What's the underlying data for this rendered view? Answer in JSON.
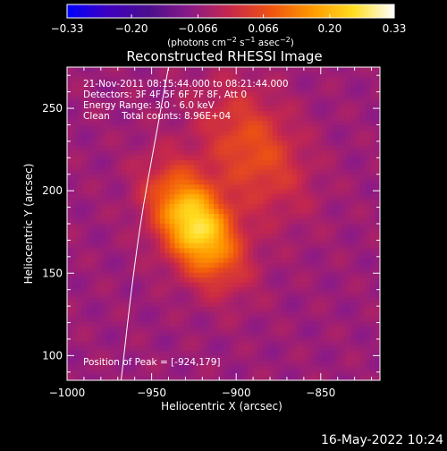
{
  "chart_data": {
    "type": "heatmap",
    "title": "Reconstructed RHESSI Image",
    "xlabel": "Heliocentric X (arcsec)",
    "ylabel": "Heliocentric Y (arcsec)",
    "xlim": [
      -1000,
      -815
    ],
    "ylim": [
      85,
      275
    ],
    "xticks": [
      -1000,
      -950,
      -900,
      -850
    ],
    "xtick_labels": [
      "−1000",
      "−950",
      "−900",
      "−850"
    ],
    "yticks": [
      100,
      150,
      200,
      250
    ],
    "ytick_labels": [
      "100",
      "150",
      "200",
      "250"
    ],
    "colorbar": {
      "range": [
        -0.33,
        0.33
      ],
      "ticks": [
        -0.33,
        -0.2,
        -0.066,
        0.066,
        0.2,
        0.33
      ],
      "tick_labels": [
        "−0.33",
        "−0.20",
        "−0.066",
        "0.066",
        "0.20",
        "0.33"
      ],
      "unit_parts": [
        "(photons cm",
        "−2",
        " s",
        "−1",
        " asec",
        "−2",
        ")"
      ],
      "colormap": [
        "#0000ff",
        "#3f00c0",
        "#4b0f8c",
        "#8a1a88",
        "#c8284a",
        "#ef5410",
        "#ff9900",
        "#ffdd20",
        "#ffffff"
      ]
    },
    "peak": [
      -924,
      179
    ],
    "peak_value": 0.33,
    "sources": [
      {
        "x": -924,
        "y": 179,
        "sx": 14,
        "sy": 24,
        "amp": 0.33,
        "rotation_deg": 30
      },
      {
        "x": -890,
        "y": 225,
        "sx": 18,
        "sy": 28,
        "amp": 0.13,
        "rotation_deg": 30
      }
    ],
    "solar_limb": [
      [
        -968,
        85
      ],
      [
        -962,
        140
      ],
      [
        -956,
        185
      ],
      [
        -948,
        230
      ],
      [
        -940,
        275
      ]
    ],
    "info_lines": [
      "21-Nov-2011 08:15:44.000 to 08:21:44.000",
      "Detectors: 3F 4F 5F 6F 7F 8F, Att 0",
      "Energy Range: 3.0 - 6.0 keV",
      "Clean    Total counts: 8.96E+04"
    ],
    "peak_label": "Position of Peak = [-924,179]",
    "timestamp": "16-May-2022 10:24"
  }
}
